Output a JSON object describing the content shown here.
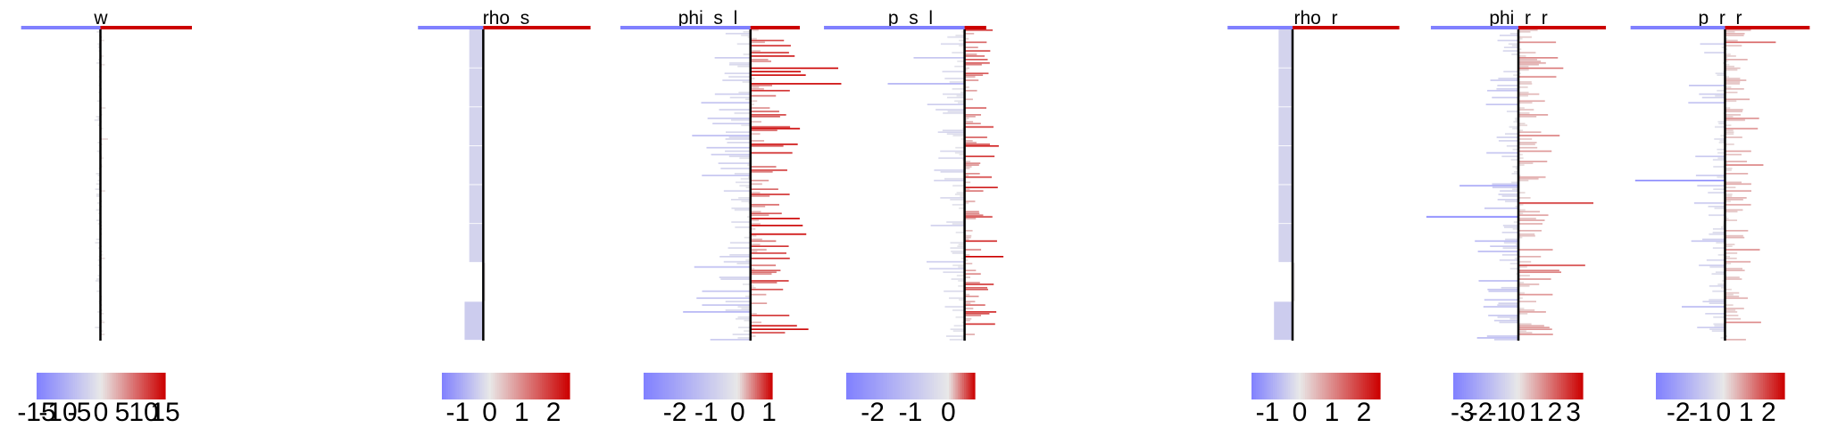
{
  "chart_data": [
    {
      "type": "bar",
      "title": "w",
      "orientation": "horizontal",
      "legend_ticks": [
        "-15",
        "-10",
        "-5",
        "0",
        "5",
        "10",
        "15"
      ],
      "legend_range": [
        -15,
        15
      ],
      "xlim": [
        -15,
        15
      ],
      "n_bars": 180,
      "typical_magnitude": 0.6,
      "header_values": [
        -13,
        15
      ]
    },
    {
      "type": "bar",
      "title": "rho_s",
      "orientation": "horizontal",
      "legend_ticks": [
        "-1",
        "0",
        "1",
        "2"
      ],
      "legend_range": [
        -1.5,
        2.5
      ],
      "xlim": [
        -1.5,
        2.5
      ],
      "n_bars": 8,
      "values": [
        -0.3,
        -0.3,
        -0.3,
        -0.3,
        -0.3,
        -0.3,
        0.05,
        -0.4
      ],
      "header_values": [
        -1.4,
        2.3
      ]
    },
    {
      "type": "bar",
      "title": "phi_s_l",
      "orientation": "horizontal",
      "legend_ticks": [
        "-2",
        "-1",
        "0",
        "1"
      ],
      "legend_range": [
        -3,
        1.1
      ],
      "xlim": [
        -3,
        1.1
      ],
      "n_bars": 180,
      "typical_magnitude": 0.9,
      "header_values": [
        -2.9,
        1.1
      ]
    },
    {
      "type": "bar",
      "title": "p_s_l",
      "orientation": "horizontal",
      "legend_ticks": [
        "-2",
        "-1",
        "0"
      ],
      "legend_range": [
        -2.7,
        0.7
      ],
      "xlim": [
        -2.7,
        0.7
      ],
      "n_bars": 180,
      "typical_magnitude": 0.5,
      "peak_value": 0.6,
      "header_values": [
        -2.6,
        0.4
      ]
    },
    {
      "type": "bar",
      "title": "rho_r",
      "orientation": "horizontal",
      "legend_ticks": [
        "-1",
        "0",
        "1",
        "2"
      ],
      "legend_range": [
        -1.5,
        2.5
      ],
      "xlim": [
        -1.5,
        2.5
      ],
      "n_bars": 8,
      "values": [
        -0.3,
        -0.3,
        -0.3,
        -0.3,
        -0.3,
        -0.3,
        0.05,
        -0.4
      ],
      "header_values": [
        -1.4,
        2.3
      ]
    },
    {
      "type": "bar",
      "title": "phi_r_r",
      "orientation": "horizontal",
      "legend_ticks": [
        "-3",
        "-2",
        "-1",
        "0",
        "1",
        "2",
        "3"
      ],
      "legend_range": [
        -3.5,
        3.5
      ],
      "xlim": [
        -3.5,
        3.5
      ],
      "n_bars": 180,
      "typical_magnitude": 1.2,
      "header_values": [
        -3.3,
        3.3
      ]
    },
    {
      "type": "bar",
      "title": "p_r_r",
      "orientation": "horizontal",
      "legend_ticks": [
        "-2",
        "-1",
        "0",
        "1",
        "2"
      ],
      "legend_range": [
        -3,
        2.7
      ],
      "xlim": [
        -3,
        2.7
      ],
      "n_bars": 180,
      "typical_magnitude": 0.8,
      "header_values": [
        -2.9,
        2.6
      ]
    }
  ],
  "colors": {
    "negative": "#8080ff",
    "neutral": "#e8e8e8",
    "positive": "#cc0000",
    "axis": "#000000"
  }
}
